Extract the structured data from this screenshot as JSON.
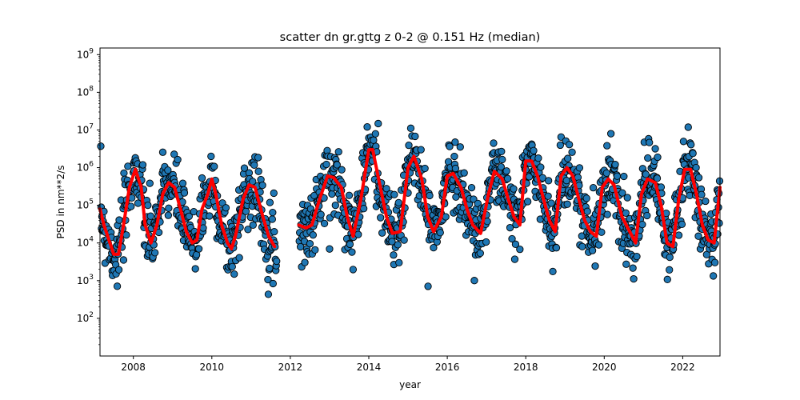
{
  "chart_data": {
    "type": "scatter",
    "title": "scatter dn gr.gttg z 0-2 @ 0.151 Hz (median)",
    "xlabel": "year",
    "ylabel": "PSD in nm**2/s",
    "y_scale": "log",
    "xlim": [
      2007.15,
      2022.95
    ],
    "ylim": [
      10,
      1500000000
    ],
    "x_ticks": [
      2008,
      2010,
      2012,
      2014,
      2016,
      2018,
      2020,
      2022
    ],
    "x_tick_labels": [
      "2008",
      "2010",
      "2012",
      "2014",
      "2016",
      "2018",
      "2020",
      "2022"
    ],
    "y_ticks": [
      100,
      1000,
      10000,
      100000,
      1000000,
      10000000,
      100000000,
      1000000000
    ],
    "y_tick_labels": [
      {
        "base": "10",
        "exp": "2"
      },
      {
        "base": "10",
        "exp": "3"
      },
      {
        "base": "10",
        "exp": "4"
      },
      {
        "base": "10",
        "exp": "5"
      },
      {
        "base": "10",
        "exp": "6"
      },
      {
        "base": "10",
        "exp": "7"
      },
      {
        "base": "10",
        "exp": "8"
      },
      {
        "base": "10",
        "exp": "9"
      }
    ],
    "grid": false,
    "legend": "none",
    "data_gap": [
      2011.65,
      2012.22
    ],
    "series": [
      {
        "kind": "scatter",
        "color": "#1f77b4",
        "edge_color": "#000000",
        "description_values": "daily PSD samples scattered roughly one decade above and below the median curve",
        "samples_per_year": 100,
        "seed": 7
      },
      {
        "kind": "line",
        "color": "#ff0000",
        "x": [
          2007.15,
          2007.25,
          2007.5,
          2007.62,
          2007.75,
          2007.9,
          2008.05,
          2008.2,
          2008.3,
          2008.45,
          2008.6,
          2008.75,
          2008.9,
          2009.05,
          2009.2,
          2009.35,
          2009.5,
          2009.62,
          2009.75,
          2009.9,
          2010.0,
          2010.1,
          2010.25,
          2010.4,
          2010.5,
          2010.6,
          2010.8,
          2010.95,
          2011.1,
          2011.3,
          2011.45,
          2011.6,
          2012.22,
          2012.4,
          2012.55,
          2012.75,
          2012.95,
          2013.1,
          2013.3,
          2013.45,
          2013.6,
          2013.8,
          2014.0,
          2014.1,
          2014.25,
          2014.45,
          2014.6,
          2014.8,
          2015.0,
          2015.15,
          2015.35,
          2015.5,
          2015.65,
          2015.85,
          2016.0,
          2016.15,
          2016.35,
          2016.5,
          2016.65,
          2016.85,
          2017.05,
          2017.2,
          2017.4,
          2017.55,
          2017.7,
          2017.85,
          2018.0,
          2018.15,
          2018.3,
          2018.45,
          2018.6,
          2018.75,
          2018.9,
          2019.05,
          2019.2,
          2019.35,
          2019.5,
          2019.65,
          2019.8,
          2019.95,
          2020.1,
          2020.25,
          2020.45,
          2020.65,
          2020.8,
          2020.95,
          2021.1,
          2021.3,
          2021.45,
          2021.6,
          2021.75,
          2021.9,
          2022.05,
          2022.2,
          2022.35,
          2022.5,
          2022.65,
          2022.8,
          2022.95
        ],
        "y": [
          80000,
          30000,
          5000,
          5000,
          30000,
          300000,
          900000,
          300000,
          30000,
          10000,
          30000,
          200000,
          400000,
          300000,
          80000,
          20000,
          10000,
          12000,
          80000,
          200000,
          500000,
          200000,
          30000,
          10000,
          7000,
          15000,
          150000,
          350000,
          300000,
          50000,
          15000,
          8000,
          30000,
          25000,
          30000,
          150000,
          600000,
          550000,
          300000,
          50000,
          15000,
          150000,
          3000000,
          3000000,
          500000,
          50000,
          18000,
          20000,
          1000000,
          2000000,
          500000,
          50000,
          20000,
          50000,
          600000,
          700000,
          300000,
          80000,
          30000,
          18000,
          200000,
          800000,
          500000,
          150000,
          50000,
          30000,
          1500000,
          1500000,
          600000,
          150000,
          40000,
          20000,
          600000,
          1000000,
          600000,
          150000,
          40000,
          20000,
          15000,
          300000,
          500000,
          350000,
          50000,
          20000,
          10000,
          200000,
          500000,
          400000,
          100000,
          10000,
          8000,
          150000,
          900000,
          900000,
          200000,
          30000,
          12000,
          10000,
          300000
        ]
      }
    ]
  }
}
